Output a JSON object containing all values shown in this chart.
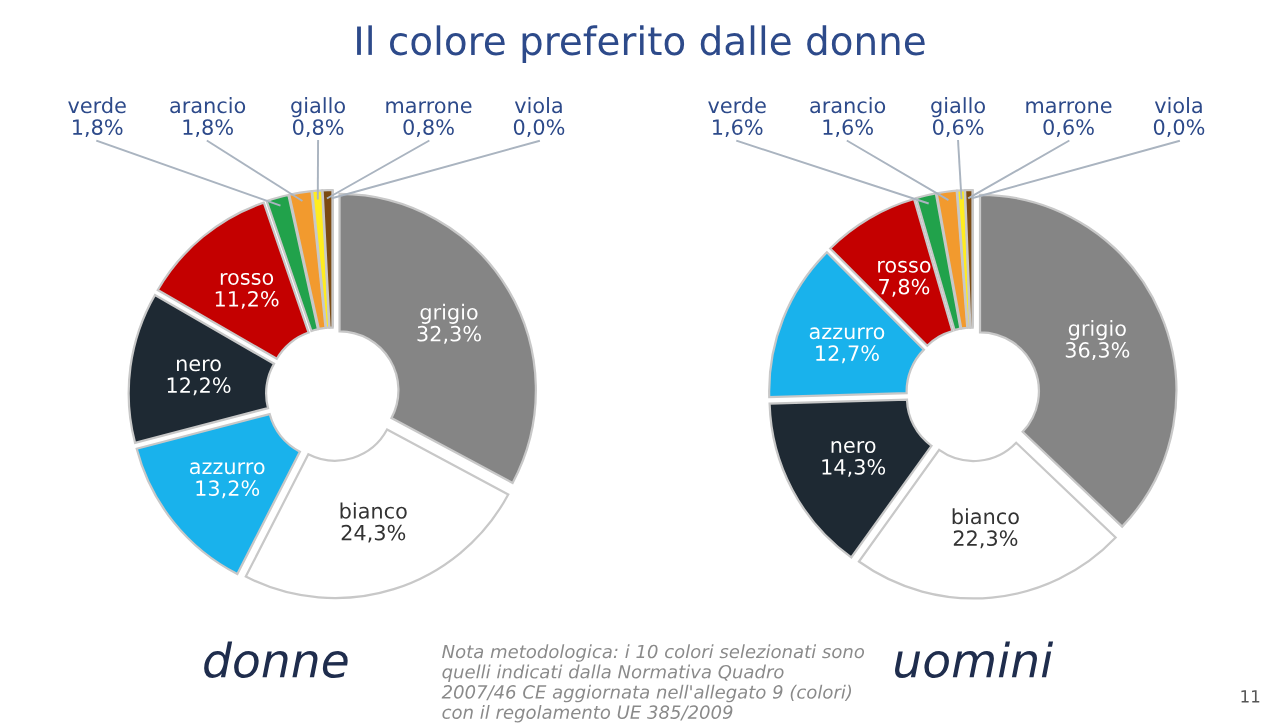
{
  "chart_data": [
    {
      "type": "donut",
      "title": "donne",
      "categories": [
        "grigio",
        "bianco",
        "azzurro",
        "nero",
        "rosso",
        "verde",
        "arancio",
        "giallo",
        "marrone",
        "viola"
      ],
      "values": [
        32.3,
        24.3,
        13.2,
        12.2,
        11.2,
        1.8,
        1.8,
        0.8,
        0.8,
        0.0
      ],
      "value_labels": [
        "32,3%",
        "24,3%",
        "13,2%",
        "12,2%",
        "11,2%",
        "1,8%",
        "1,8%",
        "0,8%",
        "0,8%",
        "0,0%"
      ],
      "colors": [
        "#858585",
        "#ffffff",
        "#19b2ec",
        "#1e2933",
        "#c40000",
        "#21a24b",
        "#f29a2e",
        "#ffec1f",
        "#7b4a12",
        "#7030a0"
      ],
      "annotations": [
        "Il colore preferito dalle donne",
        "Nota metodologica: i 10 colori selezionati sono\nquelli indicati dalla Normativa Quadro\n2007/46 CE aggiornata nell'allegato 9 (colori)\ncon il regolamento UE 385/2009",
        "11"
      ]
    },
    {
      "type": "donut",
      "title": "uomini",
      "categories": [
        "grigio",
        "bianco",
        "nero",
        "azzurro",
        "rosso",
        "verde",
        "arancio",
        "giallo",
        "marrone",
        "viola"
      ],
      "values": [
        36.3,
        22.3,
        14.3,
        12.7,
        7.8,
        1.6,
        1.6,
        0.6,
        0.6,
        0.0
      ],
      "value_labels": [
        "36,3%",
        "22,3%",
        "14,3%",
        "12,7%",
        "7,8%",
        "1,6%",
        "1,6%",
        "0,6%",
        "0,6%",
        "0,0%"
      ],
      "colors": [
        "#858585",
        "#ffffff",
        "#1e2933",
        "#19b2ec",
        "#c40000",
        "#21a24b",
        "#f29a2e",
        "#ffec1f",
        "#7b4a12",
        "#7030a0"
      ]
    }
  ]
}
